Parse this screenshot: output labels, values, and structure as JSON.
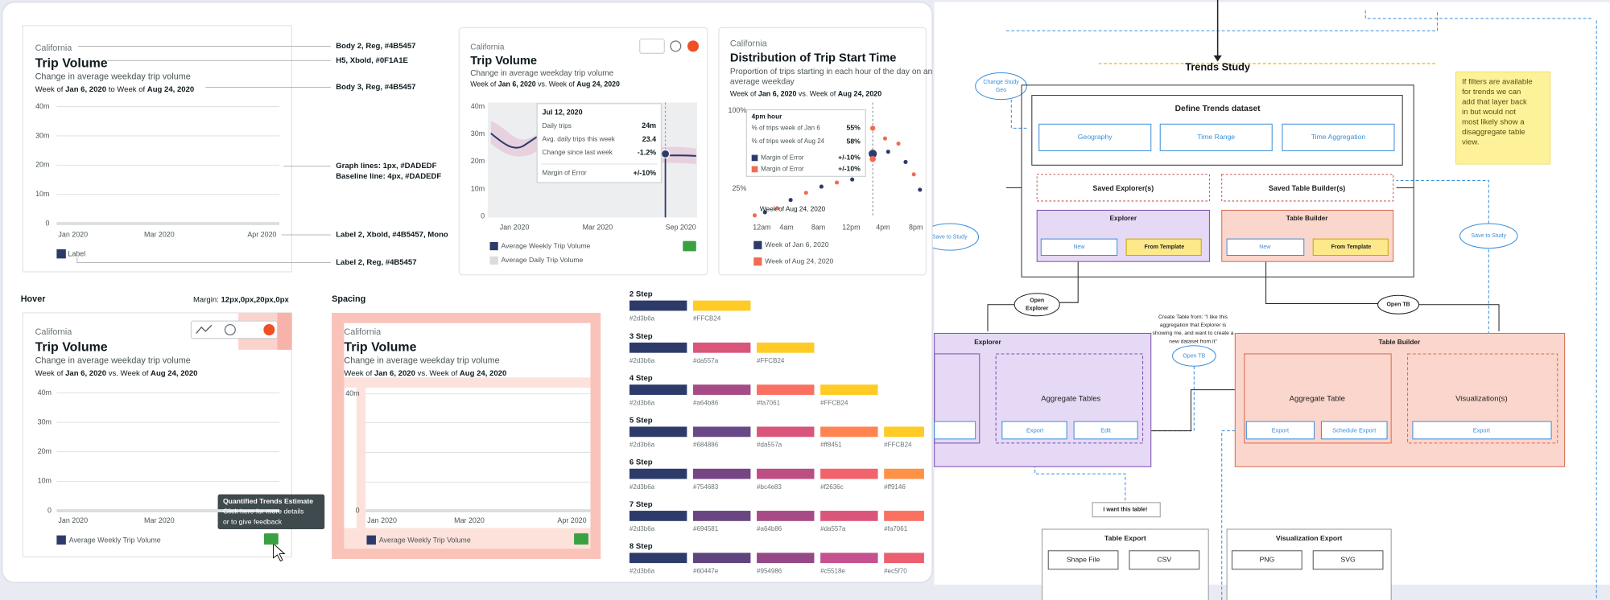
{
  "spec": {
    "location": "California",
    "title": "Trip Volume",
    "subtitle": "Change in average weekday trip volume",
    "date_line": [
      "Week of ",
      "Jan 6, 2020",
      " to Week of ",
      "Aug 24, 2020"
    ],
    "yticks": [
      "40m",
      "30m",
      "20m",
      "10m",
      "0"
    ],
    "xticks": [
      "Jan 2020",
      "Mar 2020",
      "Apr 2020"
    ],
    "legend": "Label",
    "notes": [
      "Body 2, Reg, #4B5457",
      "H5, Xbold, #0F1A1E",
      "Body 3, Reg, #4B5457",
      "Graph lines: 1px, #DADEDF",
      "Baseline line: 4px, #DADEDF",
      "Label 2, Xbold, #4B5457, Mono",
      "Label 2, Reg, #4B5457"
    ]
  },
  "trip_card": {
    "location": "California",
    "title": "Trip Volume",
    "subtitle": "Change in average weekday trip volume",
    "date_line": [
      "Week of ",
      "Jan 6, 2020",
      " vs. Week of ",
      "Aug 24, 2020"
    ],
    "yticks": [
      "40m",
      "30m",
      "20m",
      "10m",
      "0"
    ],
    "xticks": [
      "Jan 2020",
      "Mar 2020",
      "Sep 2020"
    ],
    "tooltip": {
      "title": "Jul 12, 2020",
      "rows": [
        [
          "Daily trips",
          "24m"
        ],
        [
          "Avg. daily trips this week",
          "23.4"
        ],
        [
          "Change since last week",
          "-1.2%"
        ],
        [
          "Margin of Error",
          "+/-10%"
        ]
      ]
    },
    "legend": [
      "Average Weekly Trip Volume",
      "Average Daily Trip Volume"
    ]
  },
  "distribution_card": {
    "location": "California",
    "title": "Distribution of Trip Start Time",
    "subtitle_lines": [
      "Proportion of trips starting in each hour of the day on an",
      "average weekday"
    ],
    "date_line": [
      "Week of ",
      "Jan 6, 2020",
      " vs. Week of ",
      "Aug 24, 2020"
    ],
    "yticks": [
      "100%",
      "25%"
    ],
    "xticks": [
      "12am",
      "4am",
      "8am",
      "12pm",
      "4pm",
      "8pm"
    ],
    "tooltip": {
      "title": "4pm hour",
      "rows": [
        [
          "% of trips week of Jan 6",
          "55%"
        ],
        [
          "% of trips week of Aug 24",
          "58%"
        ],
        [
          "Margin of Error",
          "+/-10%"
        ],
        [
          "Margin of Error",
          "+/-10%"
        ]
      ]
    },
    "point_label": "Week of Aug 24, 2020",
    "legend": [
      "Week of Jan 6, 2020",
      "Week of Aug 24, 2020"
    ]
  },
  "hover_section": {
    "label": "Hover",
    "margin": [
      "Margin:",
      " 12px,0px,20px,0px"
    ],
    "card": {
      "location": "California",
      "title": "Trip Volume",
      "subtitle": "Change in average weekday trip volume",
      "date_line": [
        "Week of ",
        "Jan 6, 2020",
        " vs. Week of ",
        "Aug 24, 2020"
      ],
      "yticks": [
        "40m",
        "30m",
        "20m",
        "10m",
        "0"
      ],
      "xticks": [
        "Jan 2020",
        "Mar 2020"
      ],
      "tooltip": {
        "title": "Quantified Trends Estimate",
        "lines": [
          "Click here for more details",
          "or to give feedback"
        ]
      },
      "legend": "Average Weekly Trip Volume"
    }
  },
  "spacing_section": {
    "label": "Spacing",
    "card": {
      "location": "California",
      "title": "Trip Volume",
      "subtitle": "Change in average weekday trip volume",
      "date_line": [
        "Week of ",
        "Jan 6, 2020",
        " vs. Week of ",
        "Aug 24, 2020"
      ],
      "yticks": [
        "40m",
        "0"
      ],
      "xticks": [
        "Jan 2020",
        "Mar 2020",
        "Apr 2020"
      ],
      "legend": "Average Weekly Trip Volume"
    }
  },
  "palettes": [
    {
      "name": "2 Step",
      "colors": [
        "#2d3b6a",
        "#FFCB24"
      ]
    },
    {
      "name": "3 Step",
      "colors": [
        "#2d3b6a",
        "#da557a",
        "#FFCB24"
      ]
    },
    {
      "name": "4 Step",
      "colors": [
        "#2d3b6a",
        "#a64b86",
        "#fa7061",
        "#FFCB24"
      ]
    },
    {
      "name": "5 Step",
      "colors": [
        "#2d3b6a",
        "#684886",
        "#da557a",
        "#ff8451",
        "#FFCB24"
      ]
    },
    {
      "name": "6 Step",
      "colors": [
        "#2d3b6a",
        "#754683",
        "#bc4e83",
        "#f2636c",
        "#ff9146"
      ]
    },
    {
      "name": "7 Step",
      "colors": [
        "#2d3b6a",
        "#694581",
        "#a64b86",
        "#da557a",
        "#fa7061"
      ]
    },
    {
      "name": "8 Step",
      "colors": [
        "#2d3b6a",
        "#60447e",
        "#954986",
        "#c5518e",
        "#ec5f70"
      ]
    }
  ],
  "whiteboard": {
    "title": "Trends Study",
    "change_geo": [
      "Change Study",
      "Geo"
    ],
    "define": {
      "title": "Define Trends dataset",
      "options": [
        "Geography",
        "Time Range",
        "Time Aggregation"
      ]
    },
    "note": [
      "If filters are available",
      "for trends we can",
      "add that layer back",
      "in but would not",
      "most likely show a",
      "disaggregate table",
      "view."
    ],
    "saved": [
      "Saved Explorer(s)",
      "Saved Table Builder(s)"
    ],
    "explorer_start": {
      "title": "Explorer",
      "buttons": [
        "New",
        "From Template"
      ]
    },
    "table_builder_start": {
      "title": "Table Builder",
      "buttons": [
        "New",
        "From Template"
      ]
    },
    "save_to_study": [
      "Save to Study",
      "Save to Study"
    ],
    "open_explorer": [
      "Open",
      "Explorer"
    ],
    "open_tb": "Open TB",
    "create_note": [
      "Create Table from: \"I like this",
      "aggregation that Explorer is",
      "showing me, and want to create a",
      "new dataset from it\""
    ],
    "open_tb_2": "Open TB",
    "explorer": {
      "title": "Explorer",
      "panel": "Aggregate Tables",
      "buttons": [
        "Export",
        "Edit"
      ]
    },
    "table_builder": {
      "title": "Table Builder",
      "panels": [
        "Aggregate Table",
        "Visualization(s)"
      ],
      "buttons": [
        "Export",
        "Schedule Export",
        "Export"
      ]
    },
    "want": "I want this table!",
    "table_export": {
      "title": "Table Export",
      "buttons": [
        "Shape File",
        "CSV"
      ]
    },
    "viz_export": {
      "title": "Visualization Export",
      "buttons": [
        "PNG",
        "SVG"
      ]
    }
  }
}
